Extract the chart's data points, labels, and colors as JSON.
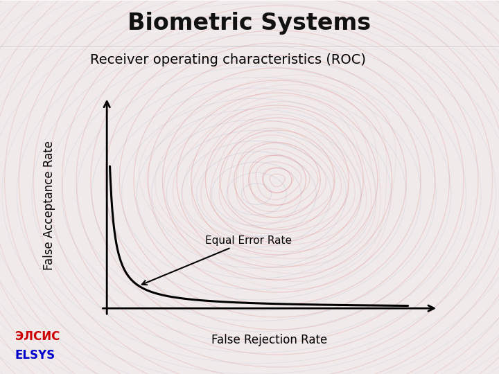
{
  "title": "Biometric Systems",
  "title_bg": "#b8b8e8",
  "subtitle": "Receiver operating characteristics (ROC)",
  "xlabel": "False Rejection Rate",
  "ylabel": "False Acceptance Rate",
  "eer_label": "Equal Error Rate",
  "bg_color": "#f0eaea",
  "curve_color": "#000000",
  "axis_color": "#000000",
  "title_fontsize": 24,
  "subtitle_fontsize": 14,
  "label_fontsize": 12,
  "eer_fontsize": 11,
  "logo_text1": "ЭЛСИС",
  "logo_text2": "ELSYS",
  "logo_color1": "#cc0000",
  "logo_color2": "#0000cc",
  "ring_color_pink": "#e08080",
  "ring_color_blue": "#8090c8",
  "ring_bg": "#f8f0f0"
}
